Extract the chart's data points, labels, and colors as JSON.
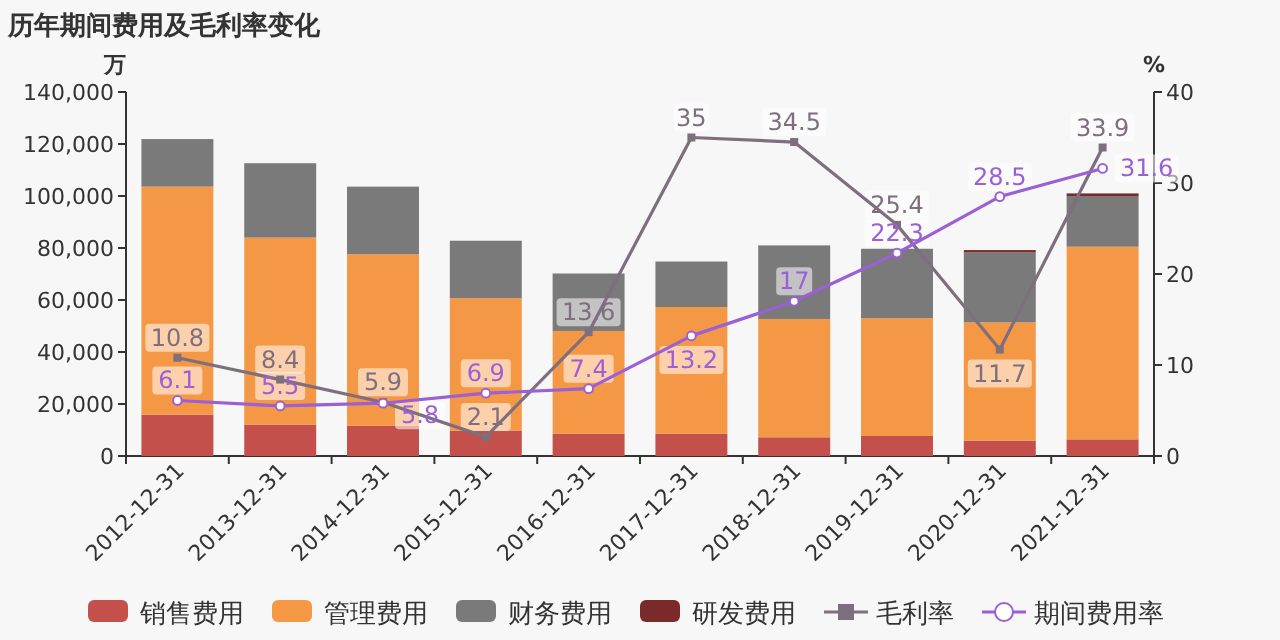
{
  "chart_data": {
    "type": "bar",
    "title": "历年期间费用及毛利率变化",
    "ylabel": "万",
    "y2label": "%",
    "categories": [
      "2012-12-31",
      "2013-12-31",
      "2014-12-31",
      "2015-12-31",
      "2016-12-31",
      "2017-12-31",
      "2018-12-31",
      "2019-12-31",
      "2020-12-31",
      "2021-12-31"
    ],
    "stacked": true,
    "grid": false,
    "legend": "bottom",
    "ylim": [
      0,
      140000
    ],
    "yticks": [
      0,
      {
        "value": 20000,
        "label": "20,000"
      },
      {
        "value": 40000,
        "label": "40,000"
      },
      {
        "value": 60000,
        "label": "60,000"
      },
      {
        "value": 80000,
        "label": "80,000"
      },
      {
        "value": 100000,
        "label": "100,000"
      },
      {
        "value": 120000,
        "label": "120,000"
      },
      {
        "value": 140000,
        "label": "140,000"
      }
    ],
    "y2lim": [
      0,
      40
    ],
    "y2ticks": [
      0,
      10,
      20,
      30,
      40
    ],
    "series": [
      {
        "name": "销售费用",
        "type": "bar",
        "color": "#c4504b",
        "values": [
          15900,
          12100,
          11600,
          9800,
          8500,
          8500,
          7200,
          7700,
          5900,
          6400
        ]
      },
      {
        "name": "管理费用",
        "type": "bar",
        "color": "#f59845",
        "values": [
          87700,
          71900,
          66000,
          50900,
          39600,
          48800,
          45500,
          45300,
          45500,
          74100
        ]
      },
      {
        "name": "财务费用",
        "type": "bar",
        "color": "#7a7a7a",
        "values": [
          18300,
          28600,
          26000,
          22100,
          22100,
          17500,
          28300,
          26700,
          27000,
          19500
        ]
      },
      {
        "name": "研发费用",
        "type": "bar",
        "color": "#7b2a2a",
        "values": [
          0,
          0,
          0,
          0,
          0,
          0,
          0,
          0,
          800,
          1000
        ]
      },
      {
        "name": "毛利率",
        "type": "line",
        "axis": "y2",
        "color": "#7d6f7d",
        "marker": "square",
        "data_labels": true,
        "values": [
          10.8,
          8.4,
          5.9,
          2.1,
          13.6,
          35,
          34.5,
          25.4,
          11.7,
          33.9
        ]
      },
      {
        "name": "期间费用率",
        "type": "line",
        "axis": "y2",
        "color": "#9b5fd6",
        "marker": "circle",
        "data_labels": true,
        "values": [
          6.1,
          5.5,
          5.8,
          6.9,
          7.4,
          13.2,
          17,
          22.3,
          28.5,
          31.6
        ]
      }
    ]
  }
}
